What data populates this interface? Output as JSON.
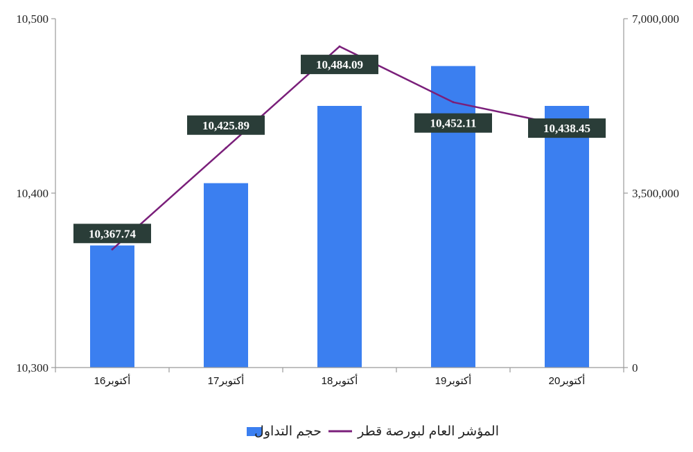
{
  "chart_data": {
    "type": "bar+line",
    "categories": [
      "أكتوبر16",
      "أكتوبر17",
      "أكتوبر18",
      "أكتوبر19",
      "أكتوبر20"
    ],
    "series": [
      {
        "name": "حجم التداول",
        "type": "bar",
        "axis": "right",
        "color": "#3b7ff0",
        "values": [
          2450000,
          3700000,
          5250000,
          6050000,
          5250000
        ]
      },
      {
        "name": "المؤشر العام لبورصة قطر",
        "type": "line",
        "axis": "left",
        "color": "#7a1f7a",
        "values": [
          10367.74,
          10425.89,
          10484.09,
          10452.11,
          10438.45
        ],
        "labels": [
          "10,367.74",
          "10,425.89",
          "10,484.09",
          "10,452.11",
          "10,438.45"
        ]
      }
    ],
    "y_left": {
      "range": [
        10300,
        10500
      ],
      "ticks": [
        10300,
        10400,
        10500
      ],
      "tick_labels": [
        "10,300",
        "10,400",
        "10,500"
      ]
    },
    "y_right": {
      "range": [
        0,
        7000000
      ],
      "ticks": [
        0,
        3500000,
        7000000
      ],
      "tick_labels": [
        "0",
        "3,500,000",
        "7,000,000"
      ]
    },
    "grid": false,
    "legend_position": "bottom-center",
    "title": "",
    "xlabel": "",
    "ylabel": ""
  }
}
